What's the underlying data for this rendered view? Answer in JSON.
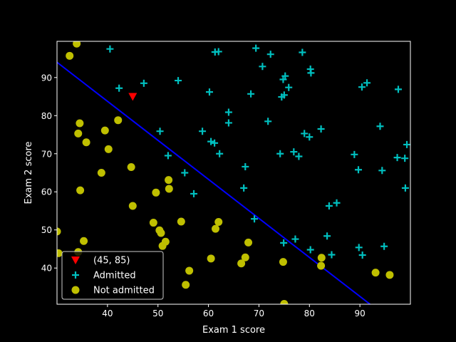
{
  "chart_data": {
    "type": "scatter",
    "title": "",
    "xlabel": "Exam 1 score",
    "ylabel": "Exam 2 score",
    "xlim": [
      30,
      100
    ],
    "ylim": [
      30.5,
      99.5
    ],
    "xticks": [
      40,
      50,
      60,
      70,
      80,
      90
    ],
    "yticks": [
      40,
      50,
      60,
      70,
      80,
      90
    ],
    "grid": false,
    "legend_position": "lower left",
    "colors": {
      "background": "#000000",
      "axes": "#ffffff",
      "admitted": "#00bfbf",
      "not_admitted": "#bfbf00",
      "boundary": "#0000ff",
      "query": "#ff0000"
    },
    "decision_boundary": {
      "name": "",
      "x": [
        30,
        92
      ],
      "y": [
        94,
        30.5
      ]
    },
    "series": [
      {
        "name": "(45, 85)",
        "marker": "triangle-down",
        "points": [
          [
            45,
            85
          ]
        ]
      },
      {
        "name": "Admitted",
        "marker": "plus",
        "points": [
          [
            40.5,
            97.5
          ],
          [
            42.3,
            87.2
          ],
          [
            47.2,
            88.5
          ],
          [
            50.4,
            75.9
          ],
          [
            52,
            69.5
          ],
          [
            54,
            89.2
          ],
          [
            55.3,
            65
          ],
          [
            57.1,
            59.5
          ],
          [
            58.8,
            75.9
          ],
          [
            60.2,
            86.2
          ],
          [
            60.5,
            73.2
          ],
          [
            61.2,
            72.8
          ],
          [
            61.3,
            96.7
          ],
          [
            62,
            96.8
          ],
          [
            62.2,
            70
          ],
          [
            64,
            80.9
          ],
          [
            64,
            78.1
          ],
          [
            67,
            61
          ],
          [
            67.3,
            66.6
          ],
          [
            68.4,
            85.7
          ],
          [
            69.1,
            52.9
          ],
          [
            69.4,
            97.7
          ],
          [
            70.7,
            92.9
          ],
          [
            71.8,
            78.5
          ],
          [
            72.3,
            96.1
          ],
          [
            74.2,
            70
          ],
          [
            74.5,
            84.9
          ],
          [
            74.8,
            89.5
          ],
          [
            75,
            85.4
          ],
          [
            75.2,
            90.4
          ],
          [
            74.9,
            46.6
          ],
          [
            75.9,
            87.4
          ],
          [
            76.9,
            70.5
          ],
          [
            77.2,
            47.6
          ],
          [
            77.9,
            69.3
          ],
          [
            78.6,
            96.6
          ],
          [
            79,
            75.3
          ],
          [
            80,
            74.4
          ],
          [
            80.2,
            92.2
          ],
          [
            80.3,
            91.2
          ],
          [
            80.2,
            44.8
          ],
          [
            82.3,
            76.5
          ],
          [
            83.5,
            48.4
          ],
          [
            83.9,
            56.3
          ],
          [
            84.4,
            43.5
          ],
          [
            85.4,
            57.1
          ],
          [
            88.9,
            69.8
          ],
          [
            89.7,
            65.8
          ],
          [
            89.8,
            45.4
          ],
          [
            90.4,
            87.5
          ],
          [
            90.5,
            43.4
          ],
          [
            91.4,
            88.6
          ],
          [
            94,
            77.2
          ],
          [
            94.4,
            65.6
          ],
          [
            94.8,
            45.7
          ],
          [
            97.4,
            69
          ],
          [
            97.6,
            86.9
          ],
          [
            98.9,
            68.8
          ],
          [
            99,
            61
          ],
          [
            99.3,
            72.4
          ]
        ]
      },
      {
        "name": "Not admitted",
        "marker": "circle",
        "points": [
          [
            30,
            49.6
          ],
          [
            30.3,
            43.9
          ],
          [
            32.5,
            95.7
          ],
          [
            33.9,
            98.9
          ],
          [
            34.2,
            75.3
          ],
          [
            34.5,
            78
          ],
          [
            34.2,
            44.2
          ],
          [
            34.6,
            60.4
          ],
          [
            35.3,
            47.1
          ],
          [
            35.8,
            73
          ],
          [
            38.8,
            65
          ],
          [
            39.5,
            76.1
          ],
          [
            40.2,
            71.2
          ],
          [
            42.1,
            78.8
          ],
          [
            44.7,
            66.5
          ],
          [
            45,
            56.3
          ],
          [
            49.1,
            51.9
          ],
          [
            49.6,
            59.8
          ],
          [
            50.3,
            49.9
          ],
          [
            50.6,
            49.2
          ],
          [
            50.9,
            45.8
          ],
          [
            51.5,
            46.9
          ],
          [
            52.1,
            63.1
          ],
          [
            52.2,
            60.8
          ],
          [
            54.6,
            52.2
          ],
          [
            55.5,
            35.6
          ],
          [
            56.2,
            39.3
          ],
          [
            60.5,
            42.5
          ],
          [
            61.4,
            50.3
          ],
          [
            62,
            52.1
          ],
          [
            66.5,
            41.2
          ],
          [
            67.3,
            42.8
          ],
          [
            67.9,
            46.7
          ],
          [
            74.8,
            41.6
          ],
          [
            75,
            30.6
          ],
          [
            82.4,
            42.7
          ],
          [
            82.3,
            40.6
          ],
          [
            93.1,
            38.8
          ],
          [
            95.9,
            38.2
          ]
        ]
      }
    ]
  }
}
